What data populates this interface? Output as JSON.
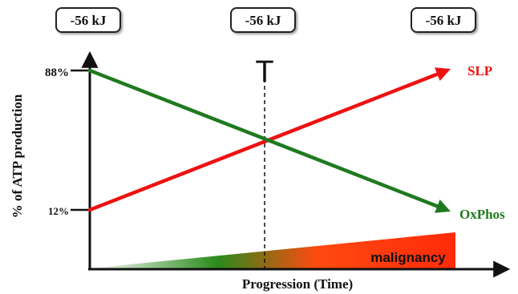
{
  "chart_data": {
    "type": "line",
    "xlabel": "Progression (Time)",
    "ylabel": "% of ATP production",
    "energy_boxes": [
      "-56 kJ",
      "-56 kJ",
      "-56 kJ"
    ],
    "y_ticks": [
      {
        "label": "88%",
        "value": 88
      },
      {
        "label": "12%",
        "value": 12
      }
    ],
    "x": [
      0,
      1
    ],
    "ylim": [
      0,
      100
    ],
    "series": [
      {
        "name": "SLP",
        "values": [
          12,
          88
        ],
        "color": "#ee1111"
      },
      {
        "name": "OxPhos",
        "values": [
          88,
          12
        ],
        "color": "#1f7a1f"
      }
    ],
    "threshold": {
      "label": "T",
      "x": 0.5,
      "style": "dashed"
    },
    "band": {
      "label": "malignancy",
      "colors": [
        "#ffffff",
        "#2a8a1a",
        "#ff4a10",
        "#ff2a0a"
      ]
    },
    "grid": false
  }
}
